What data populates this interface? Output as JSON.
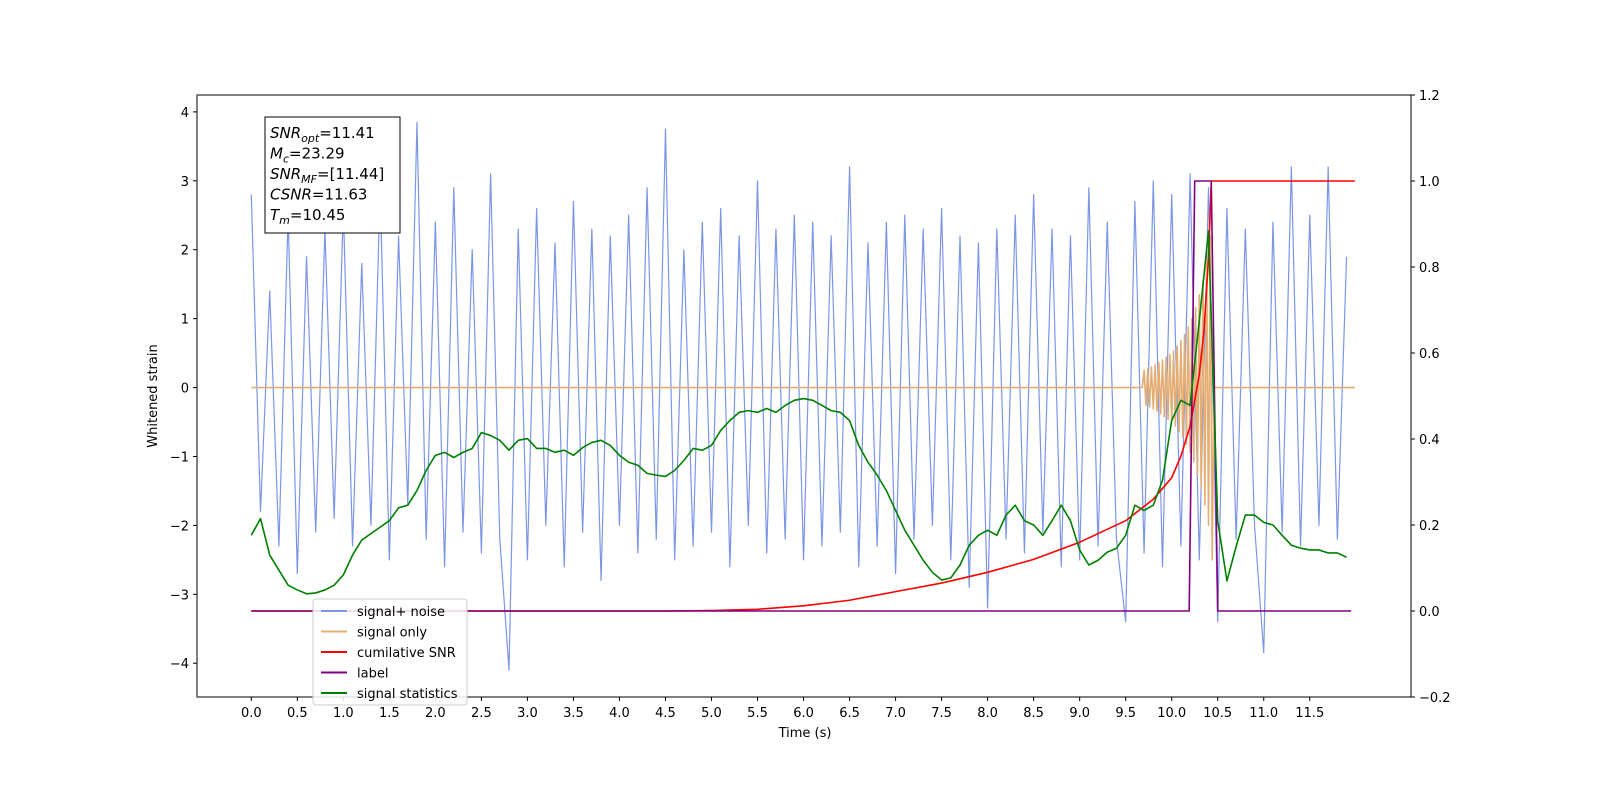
{
  "chart_data": {
    "type": "line",
    "xlabel": "Time (s)",
    "ylabel": "Whitened strain",
    "xlim": [
      -0.59,
      12.6
    ],
    "ylim": [
      -4.49,
      4.245
    ],
    "y2lim": [
      -0.2,
      1.2
    ],
    "xticks": [
      {
        "value": 0,
        "label": "0.0"
      },
      {
        "value": 0.5,
        "label": "0.5"
      },
      {
        "value": 1,
        "label": "1.0"
      },
      {
        "value": 1.5,
        "label": "1.5"
      },
      {
        "value": 2,
        "label": "2.0"
      },
      {
        "value": 2.5,
        "label": "2.5"
      },
      {
        "value": 3,
        "label": "3.0"
      },
      {
        "value": 3.5,
        "label": "3.5"
      },
      {
        "value": 4,
        "label": "4.0"
      },
      {
        "value": 4.5,
        "label": "4.5"
      },
      {
        "value": 5,
        "label": "5.0"
      },
      {
        "value": 5.5,
        "label": "5.5"
      },
      {
        "value": 6,
        "label": "6.0"
      },
      {
        "value": 6.5,
        "label": "6.5"
      },
      {
        "value": 7,
        "label": "7.0"
      },
      {
        "value": 7.5,
        "label": "7.5"
      },
      {
        "value": 8,
        "label": "8.0"
      },
      {
        "value": 8.5,
        "label": "8.5"
      },
      {
        "value": 9,
        "label": "9.0"
      },
      {
        "value": 9.5,
        "label": "9.5"
      },
      {
        "value": 10,
        "label": "10.0"
      },
      {
        "value": 10.5,
        "label": "10.5"
      },
      {
        "value": 11,
        "label": "11.0"
      },
      {
        "value": 11.5,
        "label": "11.5"
      }
    ],
    "yticks": [
      {
        "value": -4,
        "label": "−4"
      },
      {
        "value": -3,
        "label": "−3"
      },
      {
        "value": -2,
        "label": "−2"
      },
      {
        "value": -1,
        "label": "−1"
      },
      0,
      1,
      2,
      3,
      4
    ],
    "y2ticks": [
      {
        "value": -0.2,
        "label": "−0.2"
      },
      {
        "value": 0,
        "label": "0.0"
      },
      {
        "value": 0.2,
        "label": "0.2"
      },
      {
        "value": 0.4,
        "label": "0.4"
      },
      {
        "value": 0.6,
        "label": "0.6"
      },
      {
        "value": 0.8,
        "label": "0.8"
      },
      {
        "value": 1,
        "label": "1.0"
      },
      {
        "value": 1.2,
        "label": "1.2"
      }
    ],
    "annotations": [
      {
        "main": "SNR",
        "sub": "opt",
        "rest": "=11.41"
      },
      {
        "main": "M",
        "sub": "c",
        "rest": "=23.29"
      },
      {
        "main": "SNR",
        "sub": "MF",
        "rest": "=[11.44]"
      },
      {
        "main": "CSNR",
        "rest": "=11.63"
      },
      {
        "main": "T",
        "sub": "m",
        "rest": "=10.45"
      }
    ],
    "x": [
      0,
      0.1,
      0.2,
      0.3,
      0.4,
      0.5,
      0.6,
      0.7,
      0.8,
      0.9,
      1,
      1.1,
      1.2,
      1.3,
      1.4,
      1.5,
      1.6,
      1.7,
      1.8,
      1.9,
      2,
      2.1,
      2.2,
      2.3,
      2.4,
      2.5,
      2.6,
      2.7,
      2.8,
      2.9,
      3,
      3.1,
      3.2,
      3.3,
      3.4,
      3.5,
      3.6,
      3.7,
      3.8,
      3.9,
      4,
      4.1,
      4.2,
      4.3,
      4.4,
      4.5,
      4.6,
      4.7,
      4.8,
      4.9,
      5,
      5.1,
      5.2,
      5.3,
      5.4,
      5.5,
      5.6,
      5.7,
      5.8,
      5.9,
      6,
      6.1,
      6.2,
      6.3,
      6.4,
      6.5,
      6.6,
      6.7,
      6.8,
      6.9,
      7,
      7.1,
      7.2,
      7.3,
      7.4,
      7.5,
      7.6,
      7.7,
      7.8,
      7.9,
      8,
      8.1,
      8.2,
      8.3,
      8.4,
      8.5,
      8.6,
      8.7,
      8.8,
      8.9,
      9,
      9.1,
      9.2,
      9.3,
      9.4,
      9.5,
      9.6,
      9.7,
      9.8,
      9.9,
      10,
      10.1,
      10.2,
      10.3,
      10.4,
      10.5,
      10.6,
      10.7,
      10.8,
      10.9,
      11,
      11.1,
      11.2,
      11.3,
      11.4,
      11.5,
      11.6,
      11.7,
      11.8,
      11.9
    ],
    "series": [
      {
        "name": "signal+ noise",
        "color": "#7b96e6",
        "values": [
          2.8,
          -1.8,
          1.4,
          -2.3,
          2.5,
          -2.7,
          1.9,
          -2.1,
          2.3,
          -1.9,
          2.6,
          -2.3,
          1.8,
          -2.0,
          2.9,
          -2.5,
          2.2,
          -1.7,
          3.85,
          -2.2,
          2.4,
          -2.6,
          2.9,
          -2.1,
          2.0,
          -2.4,
          3.1,
          -2.2,
          -4.1,
          2.3,
          -2.5,
          2.6,
          -2.0,
          2.1,
          -2.6,
          2.7,
          -2.1,
          2.3,
          -2.8,
          2.2,
          -2.0,
          2.5,
          -2.4,
          2.9,
          -2.2,
          3.75,
          -2.5,
          2.0,
          -2.3,
          2.4,
          -2.1,
          2.6,
          -2.6,
          2.2,
          -2.0,
          3.0,
          -2.4,
          2.3,
          -2.2,
          2.5,
          -2.5,
          2.4,
          -2.3,
          2.2,
          -2.1,
          3.2,
          -2.6,
          2.1,
          -2.3,
          2.4,
          -2.7,
          2.5,
          -2.2,
          2.3,
          -2.0,
          2.6,
          -2.5,
          2.2,
          -2.9,
          2.1,
          -3.2,
          2.3,
          -2.2,
          2.5,
          -2.4,
          2.8,
          -2.1,
          2.3,
          -2.6,
          2.2,
          -2.5,
          2.9,
          -2.3,
          2.4,
          -2.2,
          -3.4,
          2.7,
          -2.4,
          3.0,
          -2.6,
          2.8,
          -2.3,
          3.1,
          -2.5,
          2.9,
          -3.4,
          2.6,
          -2.2,
          2.3,
          -2.0,
          -3.85,
          2.4,
          -2.1,
          3.2,
          -2.3,
          2.5,
          -2.0,
          3.2,
          -2.2,
          1.9
        ]
      },
      {
        "name": "signal only",
        "color": "#e3ad73",
        "x": [
          0,
          9.68,
          9.7,
          9.72,
          9.74,
          9.76,
          9.78,
          9.8,
          9.82,
          9.84,
          9.86,
          9.88,
          9.9,
          9.92,
          9.94,
          9.96,
          9.98,
          10,
          10.02,
          10.04,
          10.06,
          10.08,
          10.1,
          10.12,
          10.14,
          10.16,
          10.18,
          10.2,
          10.22,
          10.24,
          10.26,
          10.28,
          10.3,
          10.32,
          10.34,
          10.36,
          10.38,
          10.4,
          10.42,
          10.44,
          10.46,
          11.99
        ],
        "values": [
          0,
          0,
          0.25,
          -0.26,
          0.27,
          -0.28,
          0.3,
          -0.31,
          0.33,
          -0.34,
          0.36,
          -0.38,
          0.4,
          -0.42,
          0.44,
          -0.46,
          0.48,
          -0.5,
          0.53,
          -0.56,
          0.6,
          -0.64,
          0.68,
          -0.72,
          0.77,
          -0.82,
          0.88,
          -0.94,
          1.0,
          -1.08,
          1.16,
          -1.25,
          1.35,
          -1.45,
          1.56,
          -1.7,
          1.85,
          -2.0,
          2.2,
          -2.5,
          0,
          0
        ]
      },
      {
        "name": "cumilative SNR",
        "color": "#ff0000",
        "axis": "y2",
        "x": [
          0,
          4.5,
          5,
          5.5,
          6,
          6.5,
          7,
          7.5,
          8,
          8.5,
          9,
          9.5,
          9.8,
          10,
          10.1,
          10.2,
          10.3,
          10.35,
          10.4,
          10.43,
          11.99
        ],
        "values": [
          0,
          0,
          0.001,
          0.004,
          0.012,
          0.025,
          0.045,
          0.065,
          0.09,
          0.12,
          0.16,
          0.21,
          0.26,
          0.31,
          0.36,
          0.43,
          0.55,
          0.65,
          0.82,
          1.0,
          1.0
        ]
      },
      {
        "name": "label",
        "color": "#800080",
        "axis": "y2",
        "x": [
          0,
          10.19,
          10.25,
          10.43,
          10.5,
          11.95
        ],
        "values": [
          0,
          0,
          1,
          1,
          0,
          0
        ]
      },
      {
        "name": "signal statistics",
        "color": "#008000",
        "axis": "y2",
        "values": [
          0.176,
          0.215,
          0.13,
          0.095,
          0.06,
          0.049,
          0.04,
          0.042,
          0.049,
          0.06,
          0.084,
          0.13,
          0.165,
          0.18,
          0.195,
          0.21,
          0.24,
          0.246,
          0.28,
          0.327,
          0.362,
          0.369,
          0.357,
          0.369,
          0.378,
          0.415,
          0.408,
          0.397,
          0.374,
          0.397,
          0.401,
          0.378,
          0.378,
          0.369,
          0.374,
          0.362,
          0.38,
          0.392,
          0.397,
          0.385,
          0.362,
          0.346,
          0.339,
          0.32,
          0.316,
          0.313,
          0.327,
          0.35,
          0.378,
          0.374,
          0.385,
          0.42,
          0.443,
          0.462,
          0.466,
          0.462,
          0.471,
          0.462,
          0.478,
          0.49,
          0.494,
          0.49,
          0.478,
          0.466,
          0.462,
          0.443,
          0.385,
          0.346,
          0.316,
          0.28,
          0.234,
          0.188,
          0.153,
          0.118,
          0.09,
          0.072,
          0.077,
          0.107,
          0.153,
          0.176,
          0.188,
          0.176,
          0.223,
          0.246,
          0.21,
          0.2,
          0.176,
          0.21,
          0.246,
          0.21,
          0.142,
          0.107,
          0.118,
          0.137,
          0.146,
          0.176,
          0.246,
          0.234,
          0.246,
          0.304,
          0.443,
          0.49,
          0.478,
          0.675,
          0.884,
          0.21,
          0.07,
          0.15,
          0.223,
          0.223,
          0.206,
          0.2,
          0.176,
          0.153,
          0.146,
          0.142,
          0.142,
          0.135,
          0.135,
          0.125
        ]
      }
    ]
  }
}
